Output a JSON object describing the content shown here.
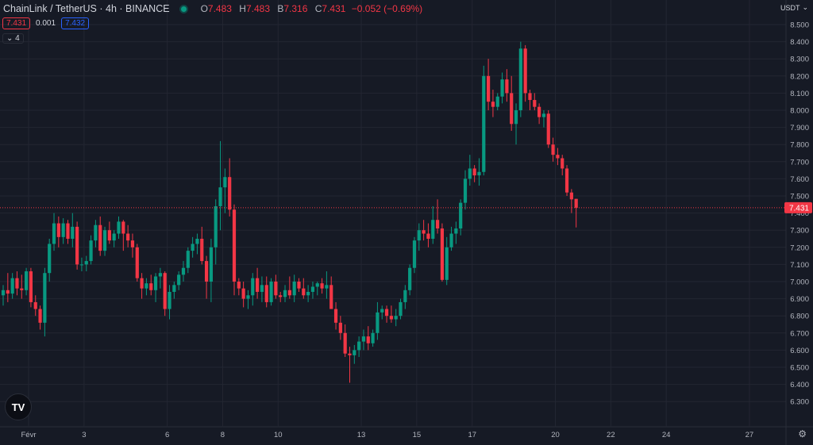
{
  "header": {
    "symbol": "ChainLink / TetherUS · 4h · BINANCE",
    "open_label": "O",
    "open": "7.483",
    "high_label": "H",
    "high": "7.483",
    "low_label": "B",
    "low": "7.316",
    "close_label": "C",
    "close": "7.431",
    "change": "−0.052 (−0.69%)"
  },
  "trade": {
    "sell": "7.431",
    "spread": "0.001",
    "buy": "7.432"
  },
  "indicators_count": "4",
  "currency": "USDT",
  "colors": {
    "up": "#089981",
    "down": "#f23645",
    "background": "#161a25",
    "grid": "#232632",
    "text": "#b2b5be"
  },
  "chart_data": {
    "type": "candlestick",
    "timeframe": "4h",
    "ylim": [
      6.25,
      8.55
    ],
    "y_ticks": [
      "8.500",
      "8.400",
      "8.300",
      "8.200",
      "8.100",
      "8.000",
      "7.900",
      "7.800",
      "7.700",
      "7.600",
      "7.500",
      "7.400",
      "7.300",
      "7.200",
      "7.100",
      "7.000",
      "6.900",
      "6.800",
      "6.700",
      "6.600",
      "6.500",
      "6.400",
      "6.300"
    ],
    "x_ticks": [
      "Févr",
      "3",
      "6",
      "8",
      "10",
      "13",
      "15",
      "17",
      "20",
      "22",
      "24",
      "27"
    ],
    "last_price": "7.431",
    "candles": [
      [
        6.92,
        6.98,
        6.86,
        6.95
      ],
      [
        6.95,
        7.05,
        6.88,
        6.93
      ],
      [
        6.93,
        7.05,
        6.9,
        7.02
      ],
      [
        7.02,
        7.06,
        6.92,
        6.96
      ],
      [
        6.96,
        7.04,
        6.9,
        6.95
      ],
      [
        6.95,
        7.08,
        6.92,
        7.06
      ],
      [
        7.06,
        7.08,
        6.85,
        6.88
      ],
      [
        6.88,
        6.92,
        6.8,
        6.84
      ],
      [
        6.84,
        6.86,
        6.72,
        6.76
      ],
      [
        6.76,
        7.08,
        6.68,
        7.05
      ],
      [
        7.05,
        7.25,
        7.0,
        7.22
      ],
      [
        7.22,
        7.4,
        7.18,
        7.34
      ],
      [
        7.34,
        7.38,
        7.2,
        7.26
      ],
      [
        7.26,
        7.37,
        7.22,
        7.34
      ],
      [
        7.34,
        7.36,
        7.22,
        7.25
      ],
      [
        7.25,
        7.4,
        7.2,
        7.32
      ],
      [
        7.32,
        7.35,
        7.07,
        7.1
      ],
      [
        7.1,
        7.14,
        7.06,
        7.1
      ],
      [
        7.1,
        7.15,
        7.06,
        7.12
      ],
      [
        7.12,
        7.27,
        7.1,
        7.24
      ],
      [
        7.24,
        7.36,
        7.2,
        7.33
      ],
      [
        7.33,
        7.38,
        7.15,
        7.18
      ],
      [
        7.18,
        7.32,
        7.15,
        7.3
      ],
      [
        7.3,
        7.35,
        7.22,
        7.24
      ],
      [
        7.24,
        7.3,
        7.2,
        7.28
      ],
      [
        7.28,
        7.38,
        7.25,
        7.35
      ],
      [
        7.35,
        7.36,
        7.18,
        7.28
      ],
      [
        7.28,
        7.33,
        7.2,
        7.24
      ],
      [
        7.24,
        7.28,
        7.14,
        7.2
      ],
      [
        7.2,
        7.22,
        7.0,
        7.02
      ],
      [
        7.02,
        7.05,
        6.9,
        6.96
      ],
      [
        6.96,
        7.02,
        6.92,
        6.99
      ],
      [
        6.99,
        7.04,
        6.92,
        6.95
      ],
      [
        6.95,
        7.05,
        6.88,
        7.03
      ],
      [
        7.03,
        7.08,
        6.96,
        7.05
      ],
      [
        7.05,
        7.06,
        6.8,
        6.84
      ],
      [
        6.84,
        6.98,
        6.78,
        6.94
      ],
      [
        6.94,
        7.0,
        6.9,
        6.98
      ],
      [
        6.98,
        7.06,
        6.95,
        7.04
      ],
      [
        7.04,
        7.12,
        7.0,
        7.08
      ],
      [
        7.08,
        7.2,
        7.05,
        7.18
      ],
      [
        7.18,
        7.26,
        7.14,
        7.22
      ],
      [
        7.22,
        7.28,
        7.16,
        7.25
      ],
      [
        7.25,
        7.32,
        7.1,
        7.12
      ],
      [
        7.12,
        7.15,
        6.9,
        7.0
      ],
      [
        7.0,
        7.25,
        6.88,
        7.2
      ],
      [
        7.2,
        7.48,
        7.1,
        7.44
      ],
      [
        7.44,
        7.82,
        7.3,
        7.55
      ],
      [
        7.55,
        7.66,
        7.4,
        7.61
      ],
      [
        7.61,
        7.72,
        7.38,
        7.42
      ],
      [
        7.42,
        7.45,
        6.92,
        7.0
      ],
      [
        7.0,
        7.02,
        6.92,
        6.96
      ],
      [
        6.96,
        7.0,
        6.85,
        6.9
      ],
      [
        6.9,
        6.95,
        6.84,
        6.92
      ],
      [
        6.92,
        7.05,
        6.86,
        7.02
      ],
      [
        7.02,
        7.08,
        6.9,
        6.94
      ],
      [
        6.94,
        7.03,
        6.88,
        6.98
      ],
      [
        6.98,
        7.03,
        6.85,
        6.88
      ],
      [
        6.88,
        7.02,
        6.86,
        7.0
      ],
      [
        7.0,
        7.04,
        6.9,
        6.92
      ],
      [
        6.92,
        6.94,
        6.88,
        6.91
      ],
      [
        6.91,
        6.98,
        6.88,
        6.95
      ],
      [
        6.95,
        7.03,
        6.9,
        6.92
      ],
      [
        6.92,
        7.04,
        6.88,
        7.0
      ],
      [
        7.0,
        7.02,
        6.94,
        6.96
      ],
      [
        6.96,
        7.02,
        6.9,
        6.92
      ],
      [
        6.92,
        6.98,
        6.88,
        6.94
      ],
      [
        6.94,
        7.0,
        6.9,
        6.97
      ],
      [
        6.97,
        7.0,
        6.92,
        6.99
      ],
      [
        6.99,
        7.02,
        6.93,
        6.96
      ],
      [
        6.96,
        7.06,
        6.9,
        6.98
      ],
      [
        6.98,
        7.03,
        6.85,
        6.84
      ],
      [
        6.84,
        6.88,
        6.72,
        6.76
      ],
      [
        6.76,
        6.8,
        6.66,
        6.7
      ],
      [
        6.7,
        6.75,
        6.56,
        6.58
      ],
      [
        6.58,
        6.62,
        6.41,
        6.57
      ],
      [
        6.57,
        6.63,
        6.52,
        6.6
      ],
      [
        6.6,
        6.68,
        6.56,
        6.65
      ],
      [
        6.65,
        6.72,
        6.6,
        6.68
      ],
      [
        6.68,
        6.74,
        6.6,
        6.64
      ],
      [
        6.64,
        6.72,
        6.62,
        6.7
      ],
      [
        6.7,
        6.88,
        6.66,
        6.82
      ],
      [
        6.82,
        6.86,
        6.78,
        6.84
      ],
      [
        6.84,
        6.86,
        6.76,
        6.8
      ],
      [
        6.8,
        6.86,
        6.76,
        6.78
      ],
      [
        6.78,
        6.84,
        6.74,
        6.8
      ],
      [
        6.8,
        6.9,
        6.78,
        6.88
      ],
      [
        6.88,
        6.98,
        6.84,
        6.95
      ],
      [
        6.95,
        7.1,
        6.92,
        7.08
      ],
      [
        7.08,
        7.26,
        7.05,
        7.24
      ],
      [
        7.24,
        7.34,
        7.18,
        7.3
      ],
      [
        7.3,
        7.36,
        7.24,
        7.28
      ],
      [
        7.28,
        7.34,
        7.2,
        7.25
      ],
      [
        7.25,
        7.44,
        7.22,
        7.36
      ],
      [
        7.36,
        7.48,
        7.28,
        7.31
      ],
      [
        7.31,
        7.34,
        7.0,
        7.01
      ],
      [
        7.01,
        7.26,
        6.98,
        7.2
      ],
      [
        7.2,
        7.32,
        7.18,
        7.28
      ],
      [
        7.28,
        7.35,
        7.22,
        7.31
      ],
      [
        7.31,
        7.48,
        7.27,
        7.46
      ],
      [
        7.46,
        7.65,
        7.42,
        7.6
      ],
      [
        7.6,
        7.74,
        7.56,
        7.66
      ],
      [
        7.66,
        7.68,
        7.58,
        7.62
      ],
      [
        7.62,
        7.72,
        7.56,
        7.64
      ],
      [
        7.64,
        8.26,
        7.62,
        8.2
      ],
      [
        8.2,
        8.3,
        8.0,
        8.05
      ],
      [
        8.05,
        8.12,
        7.96,
        8.02
      ],
      [
        8.02,
        8.1,
        8.0,
        8.08
      ],
      [
        8.08,
        8.22,
        8.04,
        8.18
      ],
      [
        8.18,
        8.24,
        8.05,
        8.1
      ],
      [
        8.1,
        8.2,
        7.88,
        7.92
      ],
      [
        7.92,
        8.04,
        7.8,
        8.0
      ],
      [
        8.0,
        8.4,
        7.96,
        8.36
      ],
      [
        8.36,
        8.38,
        8.05,
        8.1
      ],
      [
        8.1,
        8.12,
        8.0,
        8.06
      ],
      [
        8.06,
        8.1,
        8.0,
        8.02
      ],
      [
        8.02,
        8.04,
        7.92,
        7.96
      ],
      [
        7.96,
        8.0,
        7.9,
        7.98
      ],
      [
        7.98,
        8.0,
        7.78,
        7.8
      ],
      [
        7.8,
        7.84,
        7.7,
        7.74
      ],
      [
        7.74,
        7.78,
        7.68,
        7.72
      ],
      [
        7.72,
        7.74,
        7.62,
        7.66
      ],
      [
        7.66,
        7.68,
        7.5,
        7.52
      ],
      [
        7.52,
        7.54,
        7.4,
        7.48
      ],
      [
        7.483,
        7.483,
        7.316,
        7.431
      ]
    ]
  }
}
